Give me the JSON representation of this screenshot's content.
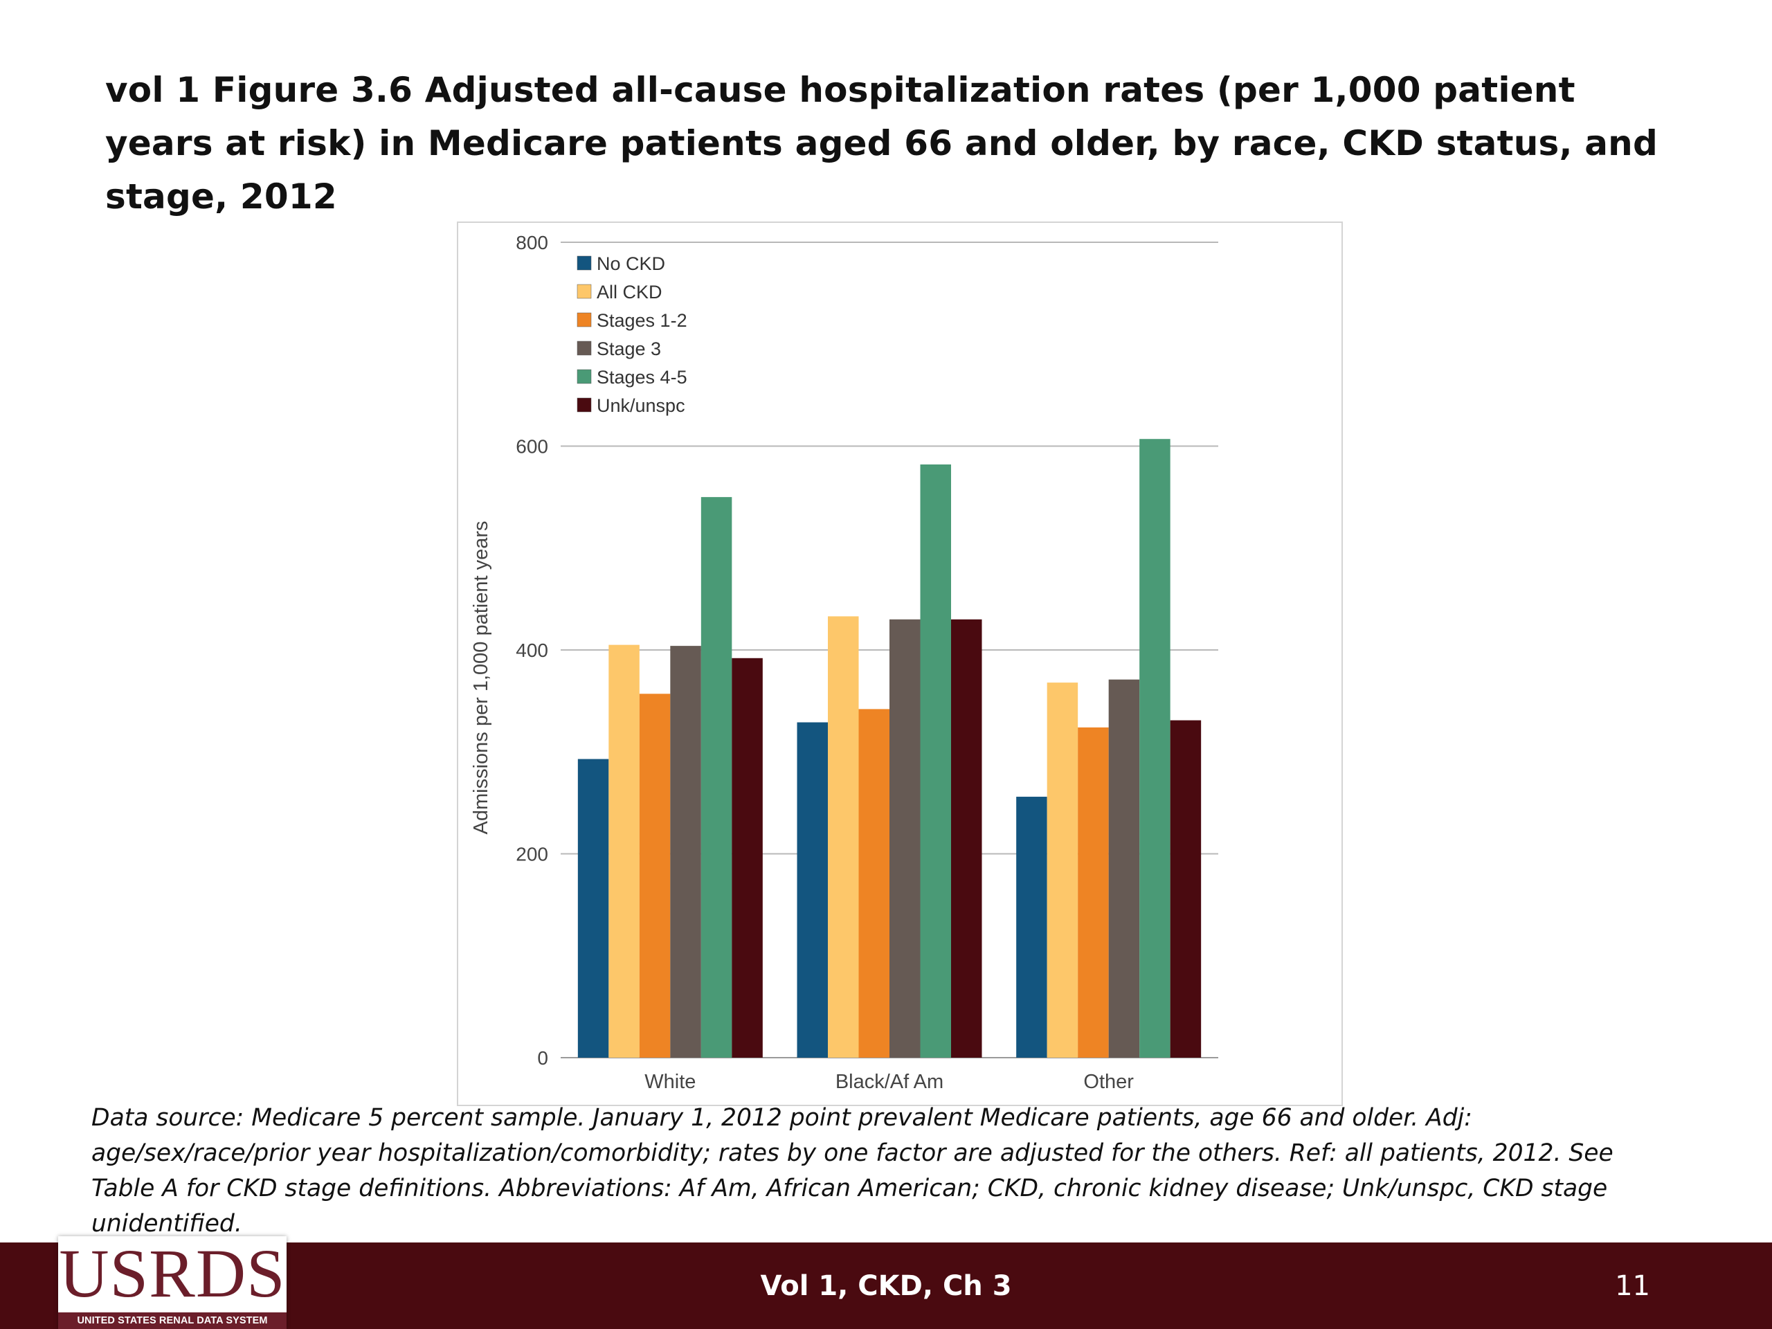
{
  "slide": {
    "title": "vol 1 Figure 3.6  Adjusted all-cause hospitalization rates (per 1,000 patient years at risk) in Medicare patients aged 66 and older, by race, CKD status, and stage, 2012",
    "data_source": "Data source: Medicare 5 percent sample. January 1, 2012 point prevalent Medicare patients, age 66 and older. Adj: age/sex/race/prior year hospitalization/comorbidity; rates by one factor are adjusted for the others. Ref: all patients, 2012. See Table A for CKD stage definitions. Abbreviations: Af Am, African American; CKD, chronic kidney disease; Unk/unspc, CKD stage unidentified."
  },
  "footer": {
    "center_text": "Vol 1, CKD, Ch 3",
    "page_number": "11",
    "logo_text": "USRDS",
    "logo_tagline": "UNITED STATES RENAL DATA SYSTEM",
    "bar_color": "#4a0a10"
  },
  "chart_data": {
    "type": "bar",
    "title": "",
    "xlabel": "",
    "ylabel": "Admissions per 1,000 patient years",
    "ylim": [
      0,
      800
    ],
    "yticks": [
      0,
      200,
      400,
      600,
      800
    ],
    "grid": true,
    "legend_position": "top-left",
    "categories": [
      "White",
      "Black/Af Am",
      "Other"
    ],
    "series": [
      {
        "name": "No CKD",
        "color": "#13557f",
        "values": [
          293,
          329,
          256
        ]
      },
      {
        "name": "All CKD",
        "color": "#fdc76a",
        "values": [
          405,
          433,
          368
        ]
      },
      {
        "name": "Stages 1-2",
        "color": "#ee8424",
        "values": [
          357,
          342,
          324
        ]
      },
      {
        "name": "Stage 3",
        "color": "#665a54",
        "values": [
          404,
          430,
          371
        ]
      },
      {
        "name": "Stages 4-5",
        "color": "#4a9a76",
        "values": [
          550,
          582,
          607
        ]
      },
      {
        "name": "Unk/unspc",
        "color": "#4a0a10",
        "values": [
          392,
          430,
          331
        ]
      }
    ]
  }
}
